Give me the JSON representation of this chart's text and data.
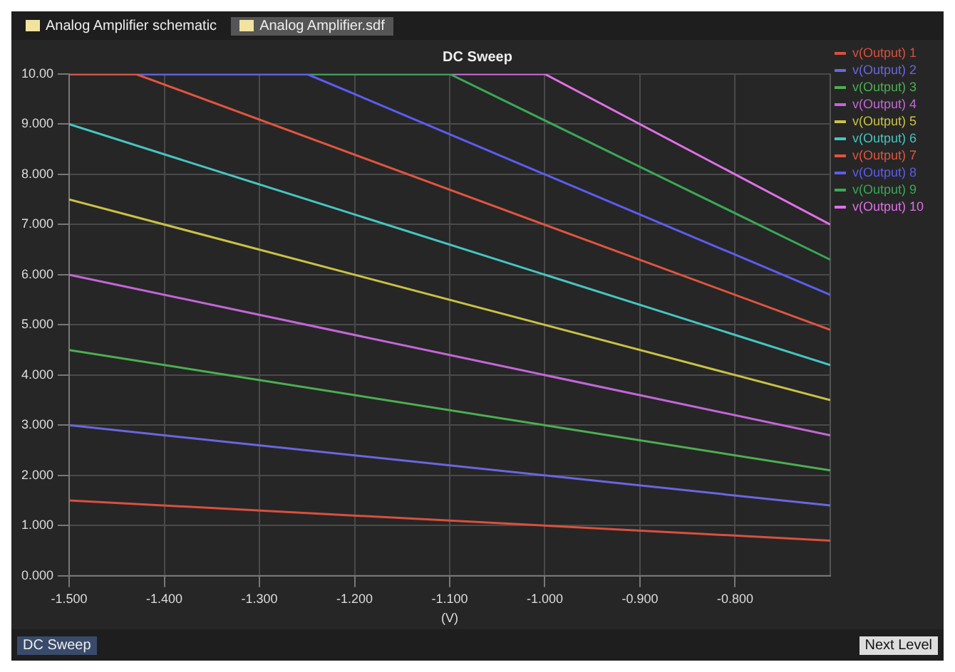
{
  "chart_data": {
    "type": "line",
    "title": "DC Sweep",
    "xlabel": "(V)",
    "annotations": [
      "Analog Amplifier schematic",
      "Analog Amplifier.sdf",
      "DC Sweep",
      "Next Level"
    ],
    "xlim": [
      -1.5,
      -0.7
    ],
    "xticks": [
      {
        "value": -1.5,
        "label": "-1.500"
      },
      {
        "value": -1.4,
        "label": "-1.400"
      },
      {
        "value": -1.3,
        "label": "-1.300"
      },
      {
        "value": -1.2,
        "label": "-1.200"
      },
      {
        "value": -1.1,
        "label": "-1.100"
      },
      {
        "value": -1.0,
        "label": "-1.000"
      },
      {
        "value": -0.9,
        "label": "-0.900"
      },
      {
        "value": -0.8,
        "label": "-0.800"
      }
    ],
    "ylim": [
      0,
      10
    ],
    "yticks": [
      {
        "value": 0,
        "label": "0.000"
      },
      {
        "value": 1,
        "label": "1.000"
      },
      {
        "value": 2,
        "label": "2.000"
      },
      {
        "value": 3,
        "label": "3.000"
      },
      {
        "value": 4,
        "label": "4.000"
      },
      {
        "value": 5,
        "label": "5.000"
      },
      {
        "value": 6,
        "label": "6.000"
      },
      {
        "value": 7,
        "label": "7.000"
      },
      {
        "value": 8,
        "label": "8.000"
      },
      {
        "value": 9,
        "label": "9.000"
      },
      {
        "value": 10,
        "label": "10.00"
      }
    ],
    "grid": true,
    "legend": "right",
    "marker": "none",
    "line_style": "solid",
    "series": [
      {
        "name": "v(Output) 1",
        "color": "#d9503f",
        "x": [
          -1.5,
          -0.7
        ],
        "values": [
          1.5,
          0.7
        ]
      },
      {
        "name": "v(Output) 2",
        "color": "#6a66e0",
        "x": [
          -1.5,
          -0.7
        ],
        "values": [
          3.0,
          1.4
        ]
      },
      {
        "name": "v(Output) 3",
        "color": "#4caf50",
        "x": [
          -1.5,
          -0.7
        ],
        "values": [
          4.5,
          2.1
        ]
      },
      {
        "name": "v(Output) 4",
        "color": "#c466d8",
        "x": [
          -1.5,
          -0.7
        ],
        "values": [
          6.0,
          2.8
        ]
      },
      {
        "name": "v(Output) 5",
        "color": "#c9c246",
        "x": [
          -1.5,
          -0.7
        ],
        "values": [
          7.5,
          3.5
        ]
      },
      {
        "name": "v(Output) 6",
        "color": "#46c6c2",
        "x": [
          -1.5,
          -0.7
        ],
        "values": [
          9.0,
          4.2
        ]
      },
      {
        "name": "v(Output) 7",
        "color": "#e0553e",
        "x": [
          -1.5,
          -1.43,
          -0.7
        ],
        "values": [
          10.0,
          10.0,
          4.9
        ]
      },
      {
        "name": "v(Output) 8",
        "color": "#5c5cf0",
        "x": [
          -1.5,
          -1.25,
          -0.7
        ],
        "values": [
          10.0,
          10.0,
          5.6
        ]
      },
      {
        "name": "v(Output) 9",
        "color": "#3aa856",
        "x": [
          -1.5,
          -1.1,
          -0.7
        ],
        "values": [
          10.0,
          10.0,
          6.3
        ]
      },
      {
        "name": "v(Output) 10",
        "color": "#e070e8",
        "x": [
          -1.5,
          -1.0,
          -0.7
        ],
        "values": [
          10.0,
          10.0,
          7.0
        ]
      }
    ]
  }
}
